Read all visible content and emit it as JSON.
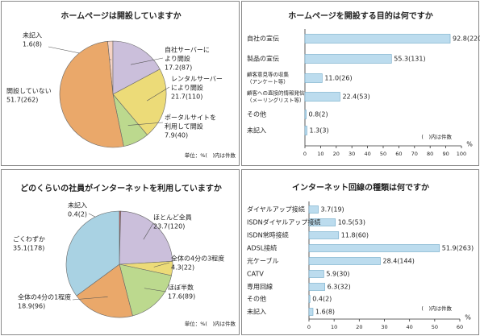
{
  "chart_data": [
    {
      "type": "pie",
      "title": "ホームページは開設していますか",
      "note": "単位：%(　)内は件数",
      "categories": [
        [
          "未記入"
        ],
        [
          "自社サーバーに",
          "より開設"
        ],
        [
          "レンタルサーバー",
          "により開設"
        ],
        [
          "ポータルサイトを",
          "利用して開設"
        ],
        [
          "開設していない"
        ]
      ],
      "values": [
        1.6,
        17.2,
        21.7,
        7.9,
        51.7
      ],
      "value_labels": [
        "1.6(8)",
        "17.2(87)",
        "21.7(110)",
        "7.9(40)",
        "51.7(262)"
      ],
      "colors": [
        "#f6d3c4",
        "#cbbfdb",
        "#ecdb78",
        "#bcd98e",
        "#eaa86a"
      ]
    },
    {
      "type": "bar",
      "orientation": "horizontal",
      "title": "ホームページを開設する目的は何ですか",
      "note": "(　)内は件数",
      "xlabel": "%",
      "categories": [
        [
          "自社の宣伝"
        ],
        [
          "製品の宣伝"
        ],
        [
          "顧客意見等の収集",
          "（アンケート等）"
        ],
        [
          "顧客への直接的情報発信",
          "（メーリングリスト等）"
        ],
        [
          "その他"
        ],
        [
          "未記入"
        ]
      ],
      "values": [
        92.8,
        55.3,
        11.0,
        22.4,
        0.8,
        1.3
      ],
      "value_labels": [
        "92.8(220)",
        "55.3(131)",
        "11.0(26)",
        "22.4(53)",
        "0.8(2)",
        "1.3(3)"
      ],
      "color": "#bcdcee",
      "xlim": [
        0,
        100
      ],
      "xticks": [
        0,
        10,
        20,
        30,
        40,
        50,
        60,
        70,
        80,
        90,
        100
      ],
      "grid": false
    },
    {
      "type": "pie",
      "title": "どのくらいの社員がインターネットを利用していますか",
      "note": "単位：%(　)内は件数",
      "categories": [
        [
          "未記入"
        ],
        [
          "ほとんど全員"
        ],
        [
          "全体の4分の3程度"
        ],
        [
          "ほぼ半数"
        ],
        [
          "全体の4分の1程度"
        ],
        [
          "ごくわずか"
        ]
      ],
      "values": [
        0.4,
        23.7,
        4.3,
        17.6,
        18.9,
        35.1
      ],
      "value_labels": [
        "0.4(2)",
        "23.7(120)",
        "4.3(22)",
        "17.6(89)",
        "18.9(96)",
        "35.1(178)"
      ],
      "colors": [
        "#d9534f",
        "#cbbfdb",
        "#ecdb78",
        "#bcd98e",
        "#eaa86a",
        "#a9d2e3"
      ]
    },
    {
      "type": "bar",
      "orientation": "horizontal",
      "title": "インターネット回線の種類は何ですか",
      "note": "(　)内は件数",
      "xlabel": "%",
      "categories": [
        [
          "ダイヤルアップ接続"
        ],
        [
          "ISDNダイヤルアップ接続"
        ],
        [
          "ISDN常時接続"
        ],
        [
          "ADSL接続"
        ],
        [
          "光ケーブル"
        ],
        [
          "CATV"
        ],
        [
          "専用回線"
        ],
        [
          "その他"
        ],
        [
          "未記入"
        ]
      ],
      "values": [
        3.7,
        10.5,
        11.8,
        51.9,
        28.4,
        5.9,
        6.3,
        0.4,
        1.6
      ],
      "value_labels": [
        "3.7(19)",
        "10.5(53)",
        "11.8(60)",
        "51.9(263)",
        "28.4(144)",
        "5.9(30)",
        "6.3(32)",
        "0.4(2)",
        "1.6(8)"
      ],
      "color": "#bcdcee",
      "xlim": [
        0,
        60
      ],
      "xticks": [
        0,
        10,
        20,
        30,
        40,
        50,
        60
      ],
      "grid": false
    }
  ]
}
